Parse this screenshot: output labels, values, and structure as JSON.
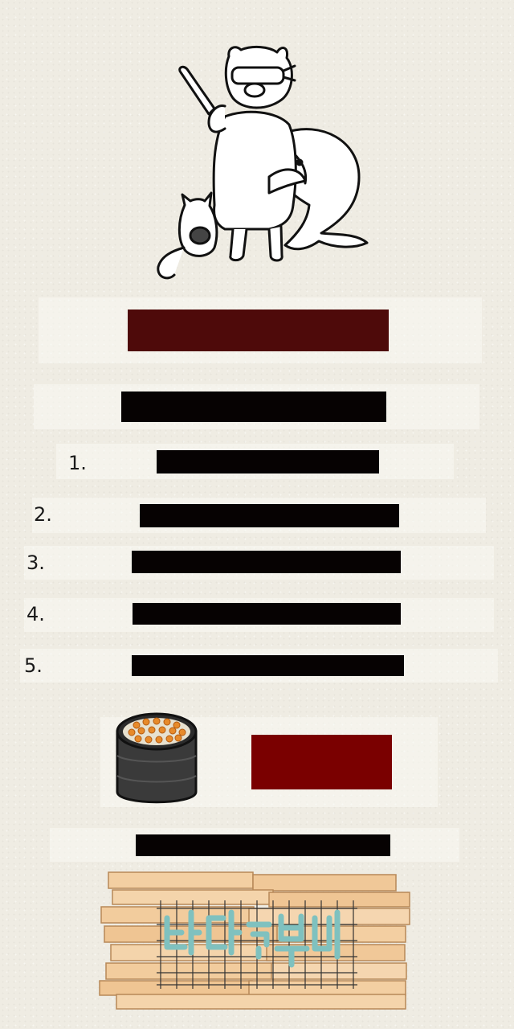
{
  "list": {
    "items": [
      {
        "number": "1."
      },
      {
        "number": "2."
      },
      {
        "number": "3."
      },
      {
        "number": "4."
      },
      {
        "number": "5."
      }
    ]
  },
  "colors": {
    "title_banner": "#4e0a0a",
    "promo_block": "#7a0000",
    "redaction": "#060202",
    "background": "#efece3"
  },
  "icons": [
    "pig-diver-dolphin-cat-illustration",
    "gimbap-roll-icon",
    "wooden-sign-logo"
  ]
}
